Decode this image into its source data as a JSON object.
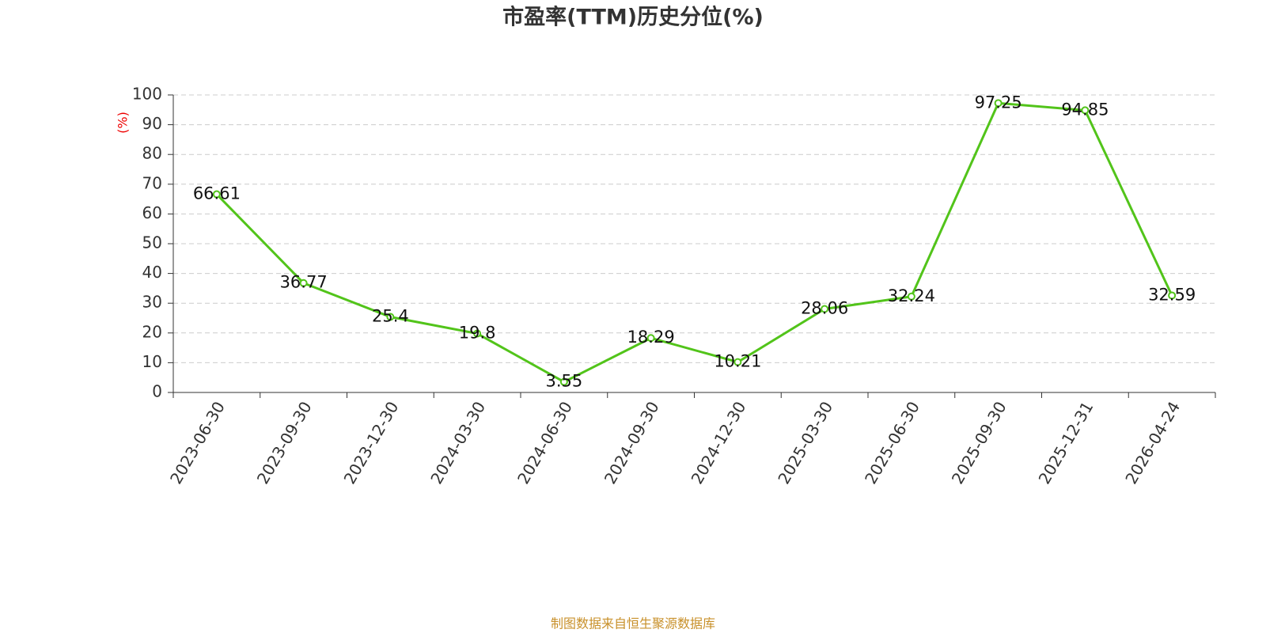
{
  "chart_data": {
    "type": "line",
    "title": "市盈率(TTM)历史分位(%)",
    "y_label": "(%)",
    "footer": "制图数据来自恒生聚源数据库",
    "categories": [
      "2023-06-30",
      "2023-09-30",
      "2023-12-30",
      "2024-03-30",
      "2024-06-30",
      "2024-09-30",
      "2024-12-30",
      "2025-03-30",
      "2025-06-30",
      "2025-09-30",
      "2025-12-31",
      "2026-04-24"
    ],
    "values": [
      66.61,
      36.77,
      25.4,
      19.8,
      3.55,
      18.29,
      10.21,
      28.06,
      32.24,
      97.25,
      94.85,
      32.59
    ],
    "color": "#52c41a",
    "ylim": [
      0,
      100
    ],
    "yticks": [
      0,
      10,
      20,
      30,
      40,
      50,
      60,
      70,
      80,
      90,
      100
    ],
    "grid": true
  }
}
